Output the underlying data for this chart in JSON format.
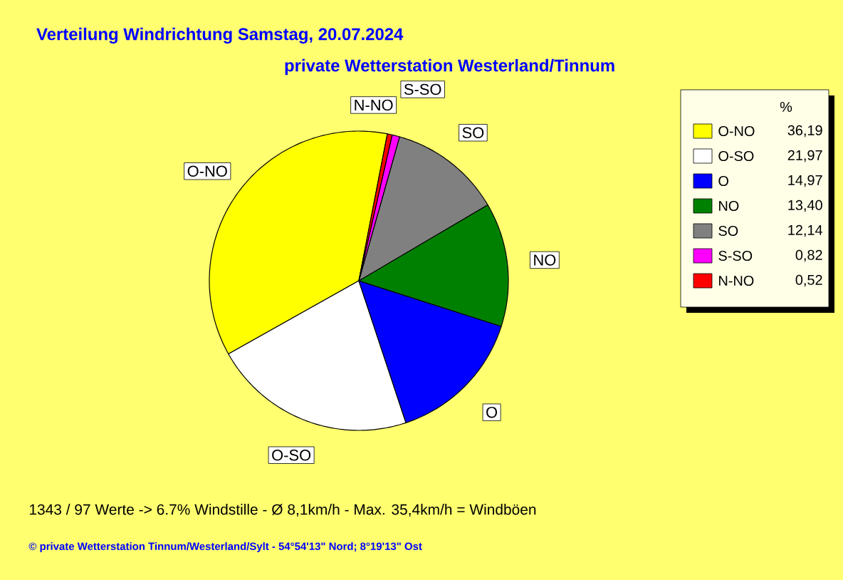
{
  "chart_data": {
    "type": "pie",
    "title": "Verteilung Windrichtung   Samstag, 20.07.2024",
    "subtitle": "private Wetterstation Westerland/Tinnum",
    "categories": [
      "O-NO",
      "O-SO",
      "O",
      "NO",
      "SO",
      "S-SO",
      "N-NO"
    ],
    "values": [
      36.19,
      21.97,
      14.97,
      13.4,
      12.14,
      0.82,
      0.52
    ],
    "value_labels": [
      "36,19",
      "21,97",
      "14,97",
      "13,40",
      "12,14",
      "0,82",
      "0,52"
    ],
    "colors": [
      "#ffff00",
      "#ffffff",
      "#0000ff",
      "#008000",
      "#808080",
      "#ff00ff",
      "#ff0000"
    ],
    "legend": "right",
    "legend_title": "%",
    "annotations": [
      "1343 / 97 Werte  -> 6.7% Windstille   -   Ø 8,1km/h  -  Max. 35,4km/h = Windböen",
      "© private Wetterstation Tinnum/Westerland/Sylt   -   54°54'13\" Nord; 8°19'13\" Ost"
    ]
  }
}
